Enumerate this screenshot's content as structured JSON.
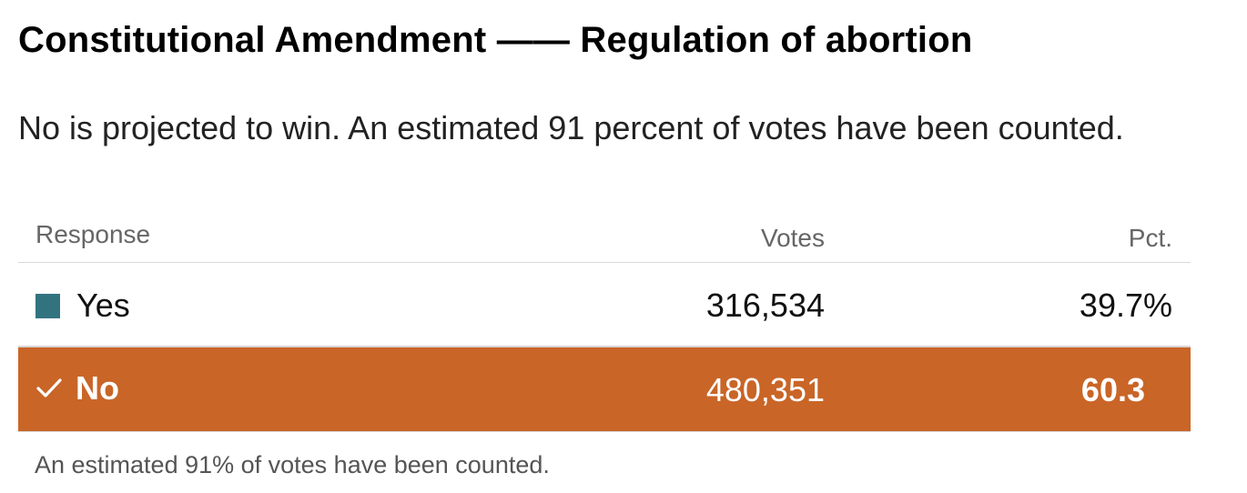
{
  "header": {
    "title": "Constitutional Amendment —— Regulation of abortion",
    "subtitle": "No is projected to win. An estimated 91 percent of votes have been counted."
  },
  "table": {
    "columns": {
      "response": "Response",
      "votes": "Votes",
      "pct": "Pct."
    },
    "rows": [
      {
        "label": "Yes",
        "votes": "316,534",
        "pct": "39.7%",
        "color": "#33737f",
        "winner": false,
        "icon": "color-swatch-icon"
      },
      {
        "label": "No",
        "votes": "480,351",
        "pct": "60.3",
        "color": "#c96527",
        "winner": true,
        "icon": "checkmark-icon"
      }
    ]
  },
  "footer": {
    "note": "An estimated 91% of votes have been counted."
  }
}
